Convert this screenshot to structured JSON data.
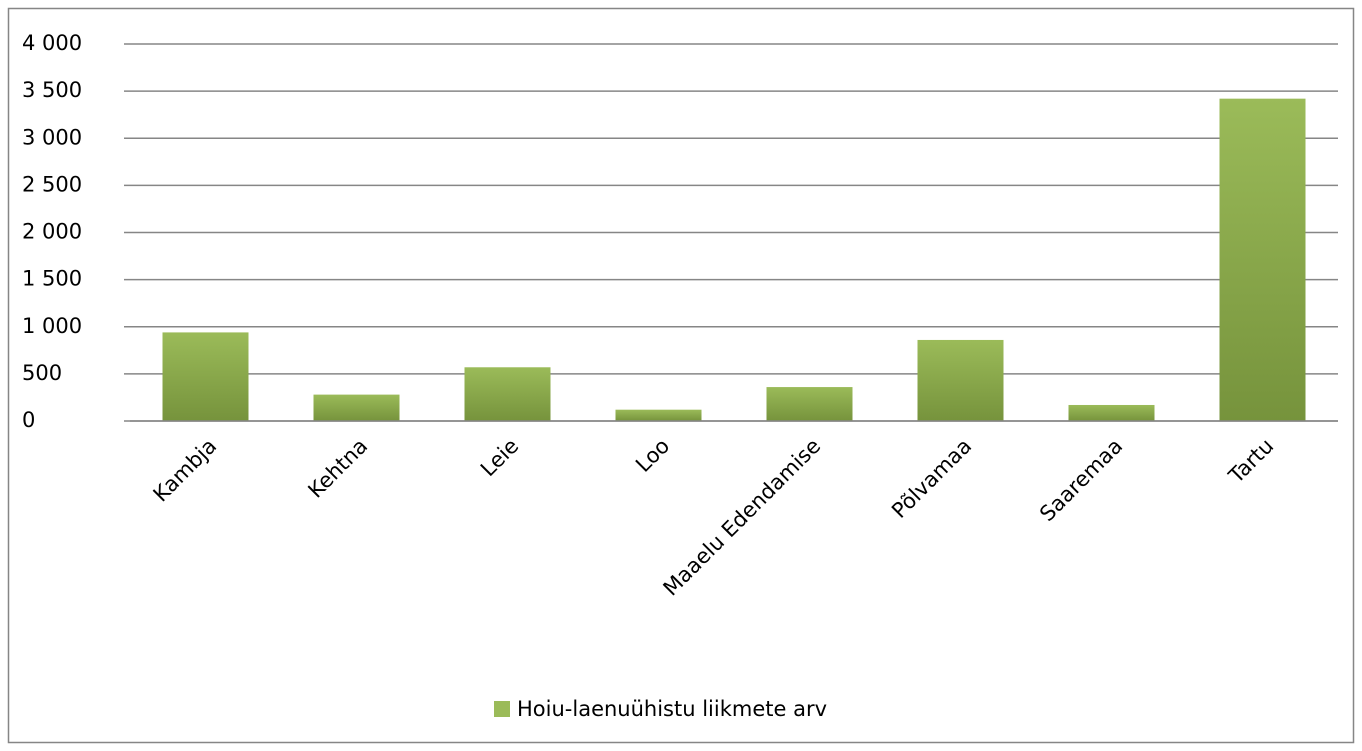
{
  "chart_data": {
    "type": "bar",
    "categories": [
      "Kambja",
      "Kehtna",
      "Leie",
      "Loo",
      "Maaelu Edendamise",
      "Põlvamaa",
      "Saaremaa",
      "Tartu"
    ],
    "series": [
      {
        "name": "Hoiu-laenuühistu liikmete arv",
        "color": "#9bbb59",
        "values": [
          940,
          280,
          570,
          120,
          360,
          860,
          170,
          3420
        ]
      }
    ],
    "ylim": [
      0,
      4000
    ],
    "yticks": [
      0,
      500,
      {
        "value": 1000,
        "label": "1 000"
      },
      {
        "value": 1500,
        "label": "1 500"
      },
      {
        "value": 2000,
        "label": "2 000"
      },
      {
        "value": 2500,
        "label": "2 500"
      },
      {
        "value": 3000,
        "label": "3 000"
      },
      {
        "value": 3500,
        "label": "3 500"
      },
      {
        "value": 4000,
        "label": "4 000"
      }
    ],
    "grid": true,
    "legend": "bottom"
  }
}
